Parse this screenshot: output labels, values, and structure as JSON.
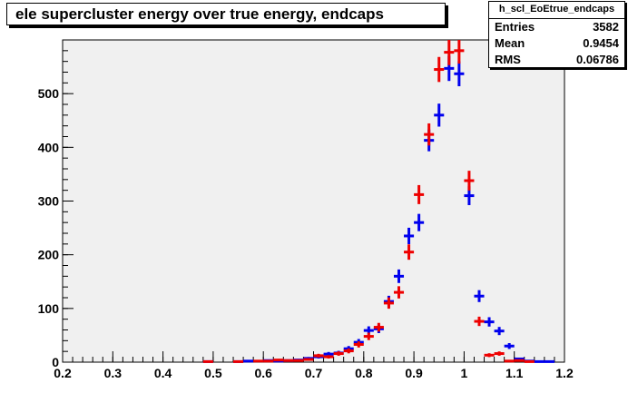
{
  "title": "ele supercluster energy over true energy, endcaps",
  "stats": {
    "name": "h_scl_EoEtrue_endcaps",
    "rows": [
      {
        "label": "Entries",
        "value": "3582"
      },
      {
        "label": "Mean",
        "value": "0.9454"
      },
      {
        "label": "RMS",
        "value": "0.06786"
      }
    ]
  },
  "colors": {
    "frame_fill": "#f0f0f0",
    "series_blue": "#0000ee",
    "series_red": "#ee0000"
  },
  "chart_data": {
    "type": "scatter",
    "title": "ele supercluster energy over true energy, endcaps",
    "xlabel": "",
    "ylabel": "",
    "xlim": [
      0.2,
      1.2
    ],
    "ylim": [
      0,
      600
    ],
    "xticks": [
      "0.2",
      "0.3",
      "0.4",
      "0.5",
      "0.6",
      "0.7",
      "0.8",
      "0.9",
      "1",
      "1.1",
      "1.2"
    ],
    "yticks": [
      "0",
      "100",
      "200",
      "300",
      "400",
      "500"
    ],
    "ytick_values": [
      0,
      100,
      200,
      300,
      400,
      500
    ],
    "xtick_values": [
      0.2,
      0.3,
      0.4,
      0.5,
      0.6,
      0.7,
      0.8,
      0.9,
      1.0,
      1.1,
      1.2
    ],
    "bin_width": 0.02,
    "grid": false,
    "series": [
      {
        "color": "#0000ee",
        "points": [
          {
            "x": 0.49,
            "y": 1,
            "err": 1
          },
          {
            "x": 0.55,
            "y": 1,
            "err": 1
          },
          {
            "x": 0.57,
            "y": 2,
            "err": 1.4
          },
          {
            "x": 0.61,
            "y": 3,
            "err": 1.7
          },
          {
            "x": 0.63,
            "y": 2,
            "err": 1.4
          },
          {
            "x": 0.65,
            "y": 3,
            "err": 1.7
          },
          {
            "x": 0.67,
            "y": 4,
            "err": 2
          },
          {
            "x": 0.69,
            "y": 7,
            "err": 2.6
          },
          {
            "x": 0.71,
            "y": 10,
            "err": 3.2
          },
          {
            "x": 0.73,
            "y": 15,
            "err": 3.9
          },
          {
            "x": 0.75,
            "y": 17,
            "err": 4.1
          },
          {
            "x": 0.77,
            "y": 25,
            "err": 5
          },
          {
            "x": 0.79,
            "y": 37,
            "err": 6.1
          },
          {
            "x": 0.81,
            "y": 59,
            "err": 7.7
          },
          {
            "x": 0.83,
            "y": 62,
            "err": 7.9
          },
          {
            "x": 0.85,
            "y": 113,
            "err": 10.6
          },
          {
            "x": 0.87,
            "y": 160,
            "err": 12.6
          },
          {
            "x": 0.89,
            "y": 235,
            "err": 15.3
          },
          {
            "x": 0.91,
            "y": 260,
            "err": 16.1
          },
          {
            "x": 0.93,
            "y": 413,
            "err": 20.3
          },
          {
            "x": 0.95,
            "y": 460,
            "err": 21.4
          },
          {
            "x": 0.97,
            "y": 547,
            "err": 23.4
          },
          {
            "x": 0.99,
            "y": 537,
            "err": 23.2
          },
          {
            "x": 1.01,
            "y": 310,
            "err": 17.6
          },
          {
            "x": 1.03,
            "y": 123,
            "err": 11.1
          },
          {
            "x": 1.05,
            "y": 75,
            "err": 8.7
          },
          {
            "x": 1.07,
            "y": 58,
            "err": 7.6
          },
          {
            "x": 1.09,
            "y": 30,
            "err": 5.5
          },
          {
            "x": 1.11,
            "y": 6,
            "err": 2.4
          },
          {
            "x": 1.13,
            "y": 2,
            "err": 1.4
          },
          {
            "x": 1.15,
            "y": 1,
            "err": 1
          },
          {
            "x": 1.17,
            "y": 1,
            "err": 1
          }
        ]
      },
      {
        "color": "#ee0000",
        "points": [
          {
            "x": 0.49,
            "y": 1,
            "err": 1
          },
          {
            "x": 0.55,
            "y": 1,
            "err": 1
          },
          {
            "x": 0.59,
            "y": 2,
            "err": 1.4
          },
          {
            "x": 0.61,
            "y": 2,
            "err": 1.4
          },
          {
            "x": 0.63,
            "y": 4,
            "err": 2
          },
          {
            "x": 0.65,
            "y": 3,
            "err": 1.7
          },
          {
            "x": 0.67,
            "y": 3,
            "err": 1.7
          },
          {
            "x": 0.69,
            "y": 5,
            "err": 2.2
          },
          {
            "x": 0.71,
            "y": 12,
            "err": 3.5
          },
          {
            "x": 0.73,
            "y": 10,
            "err": 3.2
          },
          {
            "x": 0.75,
            "y": 16,
            "err": 4
          },
          {
            "x": 0.77,
            "y": 21,
            "err": 4.6
          },
          {
            "x": 0.79,
            "y": 33,
            "err": 5.7
          },
          {
            "x": 0.81,
            "y": 48,
            "err": 6.9
          },
          {
            "x": 0.83,
            "y": 65,
            "err": 8.1
          },
          {
            "x": 0.85,
            "y": 110,
            "err": 10.5
          },
          {
            "x": 0.87,
            "y": 130,
            "err": 11.4
          },
          {
            "x": 0.89,
            "y": 205,
            "err": 14.3
          },
          {
            "x": 0.91,
            "y": 312,
            "err": 17.7
          },
          {
            "x": 0.93,
            "y": 424,
            "err": 20.6
          },
          {
            "x": 0.95,
            "y": 545,
            "err": 23.3
          },
          {
            "x": 0.97,
            "y": 577,
            "err": 24
          },
          {
            "x": 0.99,
            "y": 580,
            "err": 24.1
          },
          {
            "x": 1.01,
            "y": 338,
            "err": 18.4
          },
          {
            "x": 1.03,
            "y": 76,
            "err": 8.7
          },
          {
            "x": 1.05,
            "y": 13,
            "err": 3.6
          },
          {
            "x": 1.07,
            "y": 16,
            "err": 4
          },
          {
            "x": 1.09,
            "y": 2,
            "err": 1.4
          },
          {
            "x": 1.11,
            "y": 3,
            "err": 1.7
          },
          {
            "x": 1.13,
            "y": 1,
            "err": 1
          }
        ]
      }
    ]
  }
}
